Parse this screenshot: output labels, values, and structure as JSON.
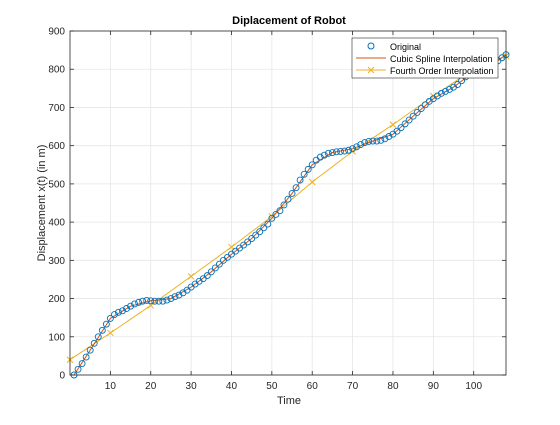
{
  "chart_data": {
    "type": "line",
    "title": "Diplacement of Robot",
    "xlabel": "Time",
    "ylabel": "Displacement x(t) (in m)",
    "xlim": [
      0,
      108
    ],
    "ylim": [
      0,
      900
    ],
    "xticks": [
      10,
      20,
      30,
      40,
      50,
      60,
      70,
      80,
      90,
      100
    ],
    "yticks": [
      0,
      100,
      200,
      300,
      400,
      500,
      600,
      700,
      800,
      900
    ],
    "grid": true,
    "legend_position": "top-right",
    "series": [
      {
        "name": "Original",
        "style": "markers-circle",
        "color": "#0072BD",
        "x": [
          1,
          2,
          3,
          4,
          5,
          6,
          7,
          8,
          9,
          10,
          11,
          12,
          13,
          14,
          15,
          16,
          17,
          18,
          19,
          20,
          21,
          22,
          23,
          24,
          25,
          26,
          27,
          28,
          29,
          30,
          31,
          32,
          33,
          34,
          35,
          36,
          37,
          38,
          39,
          40,
          41,
          42,
          43,
          44,
          45,
          46,
          47,
          48,
          49,
          50,
          51,
          52,
          53,
          54,
          55,
          56,
          57,
          58,
          59,
          60,
          61,
          62,
          63,
          64,
          65,
          66,
          67,
          68,
          69,
          70,
          71,
          72,
          73,
          74,
          75,
          76,
          77,
          78,
          79,
          80,
          81,
          82,
          83,
          84,
          85,
          86,
          87,
          88,
          89,
          90,
          91,
          92,
          93,
          94,
          95,
          96,
          97,
          98,
          99,
          100,
          101,
          102,
          103,
          104,
          105,
          106,
          107,
          108
        ],
        "y": [
          0,
          15,
          30,
          47,
          65,
          83,
          100,
          117,
          133,
          148,
          158,
          164,
          168,
          174,
          180,
          186,
          190,
          193,
          195,
          194,
          193,
          193,
          193,
          196,
          200,
          205,
          209,
          215,
          222,
          230,
          238,
          245,
          252,
          260,
          270,
          280,
          290,
          300,
          308,
          316,
          324,
          332,
          340,
          348,
          357,
          366,
          375,
          385,
          395,
          410,
          420,
          430,
          445,
          460,
          475,
          490,
          510,
          525,
          538,
          550,
          562,
          570,
          575,
          580,
          582,
          584,
          585,
          586,
          588,
          592,
          597,
          603,
          608,
          611,
          612,
          612,
          614,
          618,
          624,
          630,
          638,
          647,
          657,
          667,
          677,
          687,
          697,
          707,
          716,
          723,
          730,
          737,
          742,
          747,
          753,
          760,
          770,
          780,
          788,
          793,
          797,
          800,
          805,
          810,
          815,
          822,
          830,
          838
        ]
      },
      {
        "name": "Cubic Spline Interpolation",
        "style": "line",
        "color": "#D95319",
        "x": [
          1,
          5,
          10,
          15,
          20,
          25,
          30,
          35,
          40,
          45,
          50,
          55,
          60,
          65,
          70,
          75,
          80,
          85,
          90,
          95,
          100,
          105,
          108
        ],
        "y": [
          0,
          65,
          148,
          180,
          194,
          200,
          230,
          270,
          316,
          357,
          410,
          475,
          550,
          582,
          592,
          612,
          630,
          677,
          723,
          753,
          793,
          815,
          838
        ]
      },
      {
        "name": "Fourth Order Interpolation",
        "style": "line-x",
        "color": "#EDB120",
        "x": [
          0,
          10,
          20,
          30,
          40,
          50,
          60,
          70,
          80,
          90,
          100,
          108
        ],
        "y": [
          40,
          110,
          182,
          258,
          335,
          415,
          505,
          585,
          655,
          730,
          800,
          835
        ]
      }
    ]
  }
}
